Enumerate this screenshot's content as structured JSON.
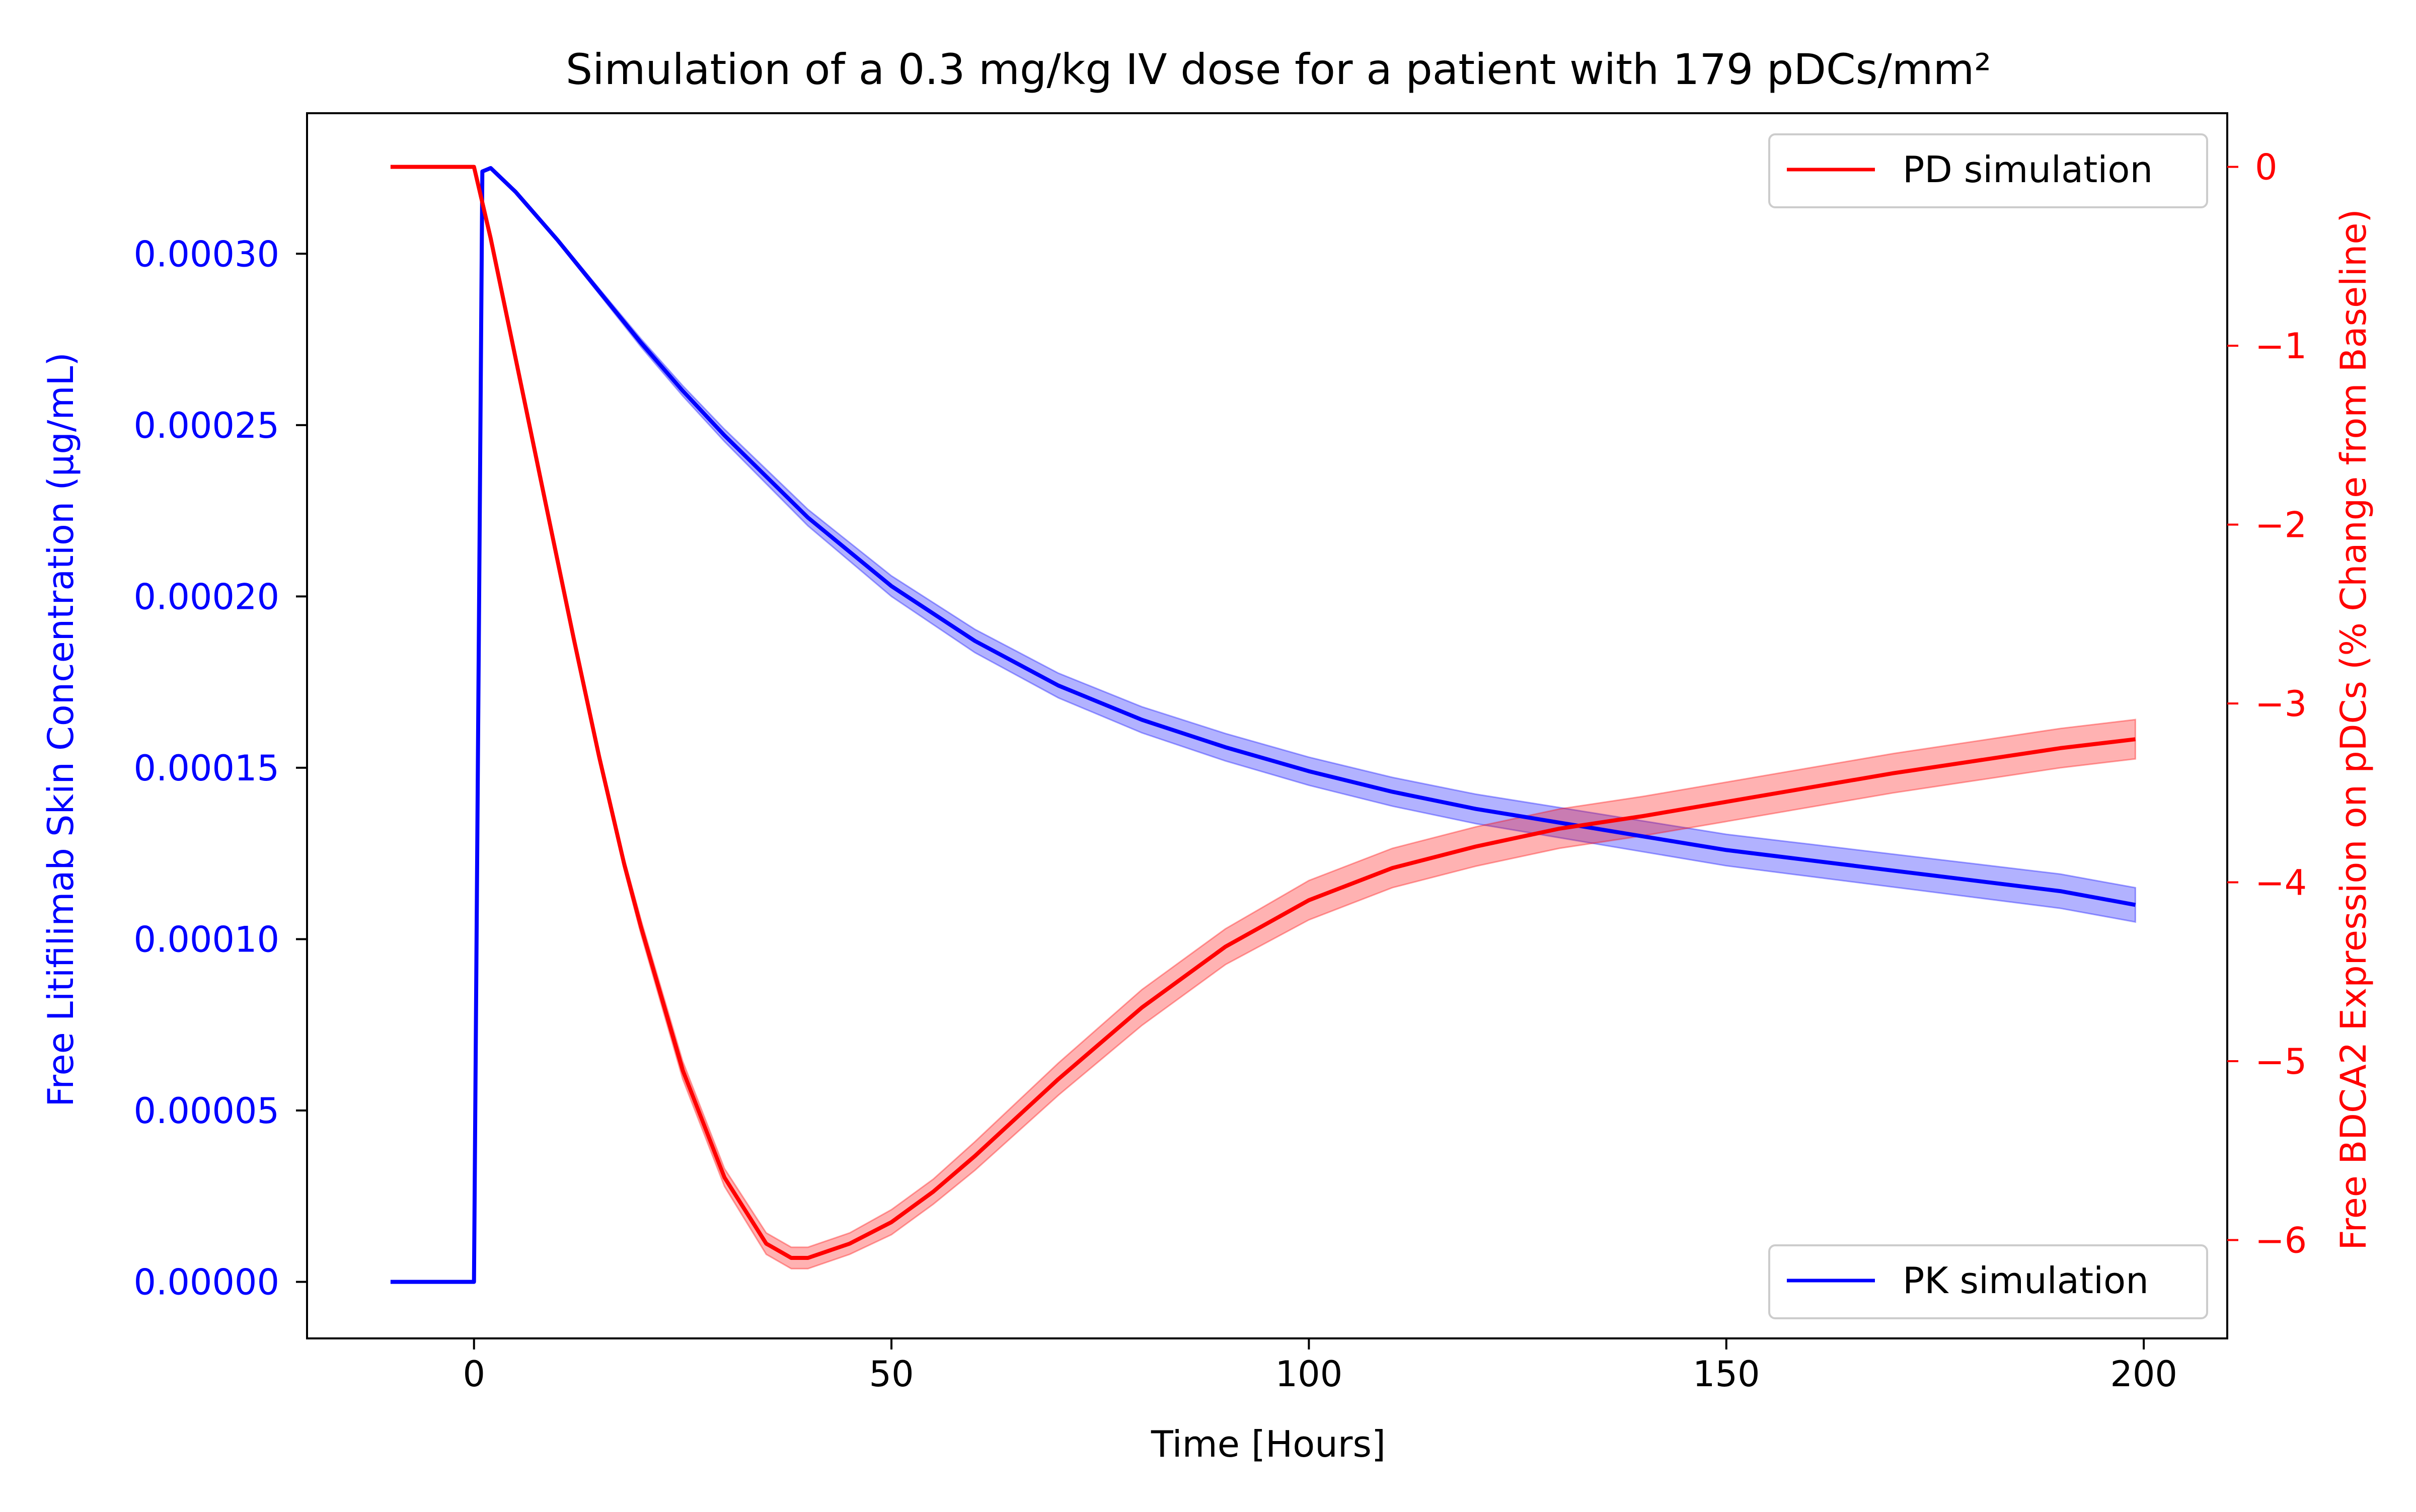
{
  "chart_data": {
    "type": "line",
    "title": "Simulation of a 0.3 mg/kg IV dose for a patient with 179 pDCs/mm²",
    "xlabel": "Time [Hours]",
    "y1label": "Free Litifilimab Skin Concentration (µg/mL)",
    "y2label": "Free BDCA2 Expression on pDCs (% Change from Baseline)",
    "xlim": [
      -20,
      210
    ],
    "y1lim": [
      -1.65e-05,
      0.000341
    ],
    "y2lim": [
      -6.55,
      0.3
    ],
    "xticks": [
      0,
      50,
      100,
      150,
      200
    ],
    "xtick_labels": [
      "0",
      "50",
      "100",
      "150",
      "200"
    ],
    "y1ticks": [
      0,
      5e-05,
      0.0001,
      0.00015,
      0.0002,
      0.00025,
      0.0003
    ],
    "y1tick_labels": [
      "0.00000",
      "0.00005",
      "0.00010",
      "0.00015",
      "0.00020",
      "0.00025",
      "0.00030"
    ],
    "y2ticks": [
      0,
      -1,
      -2,
      -3,
      -4,
      -5,
      -6
    ],
    "y2tick_labels": [
      "0",
      "−1",
      "−2",
      "−3",
      "−4",
      "−5",
      "−6"
    ],
    "legend_top_right": "PD simulation",
    "legend_bottom_right": "PK simulation",
    "colors": {
      "pk": "#0000ff",
      "pd": "#ff0000",
      "pk_band": "#0000ff",
      "pd_band": "#ff0000"
    },
    "series": [
      {
        "name": "PK simulation",
        "axis": "left",
        "color": "#0000ff",
        "x": [
          -10,
          0,
          1,
          2,
          5,
          10,
          15,
          20,
          25,
          30,
          40,
          50,
          60,
          70,
          80,
          90,
          100,
          110,
          120,
          130,
          140,
          150,
          160,
          170,
          180,
          190,
          199
        ],
        "y": [
          0,
          0,
          0.000324,
          0.000325,
          0.000318,
          0.000304,
          0.000289,
          0.000274,
          0.00026,
          0.000247,
          0.000223,
          0.000203,
          0.000187,
          0.000174,
          0.000164,
          0.000156,
          0.000149,
          0.000143,
          0.000138,
          0.000134,
          0.00013,
          0.000126,
          0.000123,
          0.00012,
          0.000117,
          0.000114,
          0.00011
        ],
        "band_halfwidth": [
          0,
          0,
          0,
          0,
          0,
          5e-07,
          8e-07,
          1.2e-06,
          1.5e-06,
          1.8e-06,
          2.4e-06,
          3e-06,
          3.4e-06,
          3.6e-06,
          3.8e-06,
          4e-06,
          4.1e-06,
          4.2e-06,
          4.3e-06,
          4.4e-06,
          4.5e-06,
          4.6e-06,
          4.7e-06,
          4.8e-06,
          4.9e-06,
          5e-06,
          5e-06
        ]
      },
      {
        "name": "PD simulation",
        "axis": "right",
        "color": "#ff0000",
        "x": [
          -10,
          0,
          1,
          2,
          4,
          6,
          8,
          10,
          12,
          15,
          18,
          20,
          25,
          30,
          35,
          38,
          40,
          45,
          50,
          55,
          60,
          70,
          80,
          90,
          100,
          110,
          120,
          130,
          140,
          150,
          160,
          170,
          180,
          190,
          199
        ],
        "y": [
          0,
          0,
          -0.2,
          -0.4,
          -0.85,
          -1.3,
          -1.75,
          -2.2,
          -2.65,
          -3.3,
          -3.9,
          -4.25,
          -5.05,
          -5.65,
          -6.02,
          -6.1,
          -6.1,
          -6.02,
          -5.9,
          -5.73,
          -5.53,
          -5.1,
          -4.7,
          -4.36,
          -4.1,
          -3.92,
          -3.8,
          -3.7,
          -3.63,
          -3.55,
          -3.47,
          -3.39,
          -3.32,
          -3.25,
          -3.2
        ],
        "band_halfwidth": [
          0,
          0,
          0,
          0,
          0,
          0.01,
          0.01,
          0.02,
          0.02,
          0.03,
          0.03,
          0.04,
          0.05,
          0.05,
          0.06,
          0.06,
          0.06,
          0.06,
          0.07,
          0.07,
          0.08,
          0.09,
          0.1,
          0.1,
          0.11,
          0.11,
          0.11,
          0.11,
          0.11,
          0.11,
          0.11,
          0.11,
          0.11,
          0.11,
          0.11
        ]
      }
    ]
  }
}
